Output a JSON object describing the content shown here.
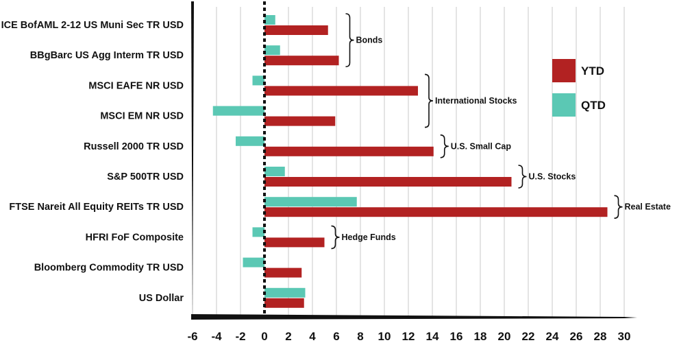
{
  "chart_data": {
    "type": "bar",
    "orientation": "horizontal",
    "categories": [
      "ICE BofAML 2-12 US Muni Sec TR USD",
      "BBgBarc US Agg Interm TR USD",
      "MSCI EAFE NR USD",
      "MSCI EM NR USD",
      "Russell 2000 TR USD",
      "S&P 500TR USD",
      "FTSE Nareit All Equity REITs TR USD",
      "HFRI FoF Composite",
      "Bloomberg Commodity TR USD",
      "US Dollar"
    ],
    "series": [
      {
        "name": "YTD",
        "color": "#b22222",
        "values": [
          5.3,
          6.2,
          12.8,
          5.9,
          14.1,
          20.6,
          28.6,
          5.0,
          3.1,
          3.3
        ]
      },
      {
        "name": "QTD",
        "color": "#5bc8b4",
        "values": [
          0.9,
          1.3,
          -1.0,
          -4.3,
          -2.4,
          1.7,
          7.7,
          -1.0,
          -1.8,
          3.4
        ]
      }
    ],
    "xlim": [
      -6,
      30
    ],
    "xticks": [
      "-6",
      "-4",
      "-2",
      "0",
      "2",
      "4",
      "6",
      "8",
      "10",
      "12",
      "14",
      "16",
      "18",
      "20",
      "22",
      "24",
      "26",
      "28",
      "30"
    ],
    "grid": "vertical",
    "legend": "right",
    "annotations": [
      {
        "text": "Bonds",
        "rows": [
          0,
          1
        ]
      },
      {
        "text": "International Stocks",
        "rows": [
          2,
          3
        ]
      },
      {
        "text": "U.S. Small Cap",
        "rows": [
          4
        ]
      },
      {
        "text": "U.S. Stocks",
        "rows": [
          5
        ]
      },
      {
        "text": "Real Estate",
        "rows": [
          6
        ]
      },
      {
        "text": "Hedge Funds",
        "rows": [
          7
        ]
      }
    ]
  }
}
